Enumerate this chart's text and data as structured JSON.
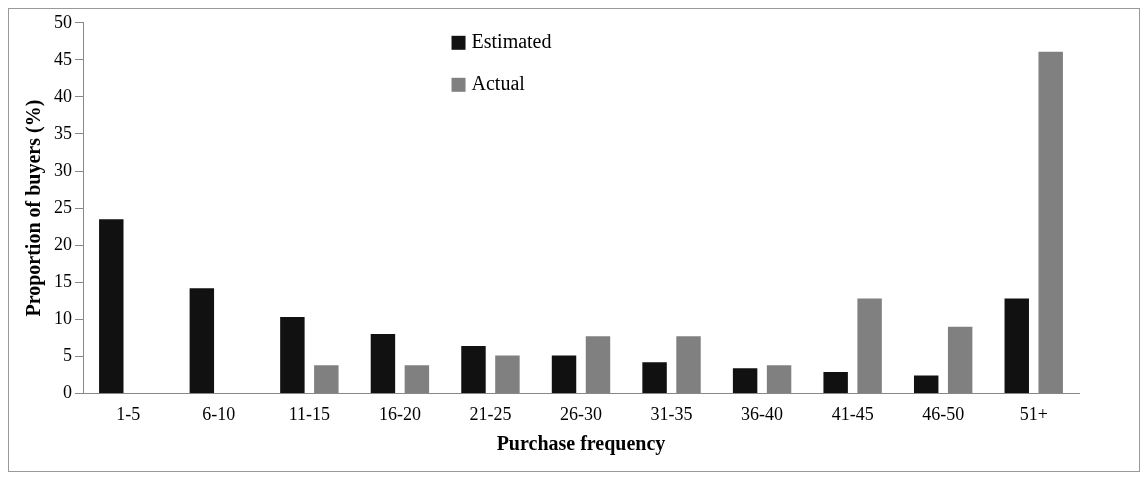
{
  "chart_data": {
    "type": "bar",
    "xlabel": "Purchase frequency",
    "ylabel": "Proportion of buyers (%)",
    "categories": [
      "1-5",
      "6-10",
      "11-15",
      "16-20",
      "21-25",
      "26-30",
      "31-35",
      "36-40",
      "41-45",
      "46-50",
      "51+"
    ],
    "series": [
      {
        "name": "Estimated",
        "color": "#111111",
        "values": [
          23.5,
          14.2,
          10.3,
          8.0,
          6.4,
          5.1,
          4.2,
          3.4,
          2.9,
          2.4,
          12.8
        ]
      },
      {
        "name": "Actual",
        "color": "#808080",
        "values": [
          0,
          0,
          3.8,
          3.8,
          5.1,
          7.7,
          7.7,
          3.8,
          12.8,
          9.0,
          46.1
        ]
      }
    ],
    "ylim": [
      0,
      50
    ],
    "yticks": [
      0,
      5,
      10,
      15,
      20,
      25,
      30,
      35,
      40,
      45,
      50
    ],
    "grid": false,
    "legend": "top"
  }
}
